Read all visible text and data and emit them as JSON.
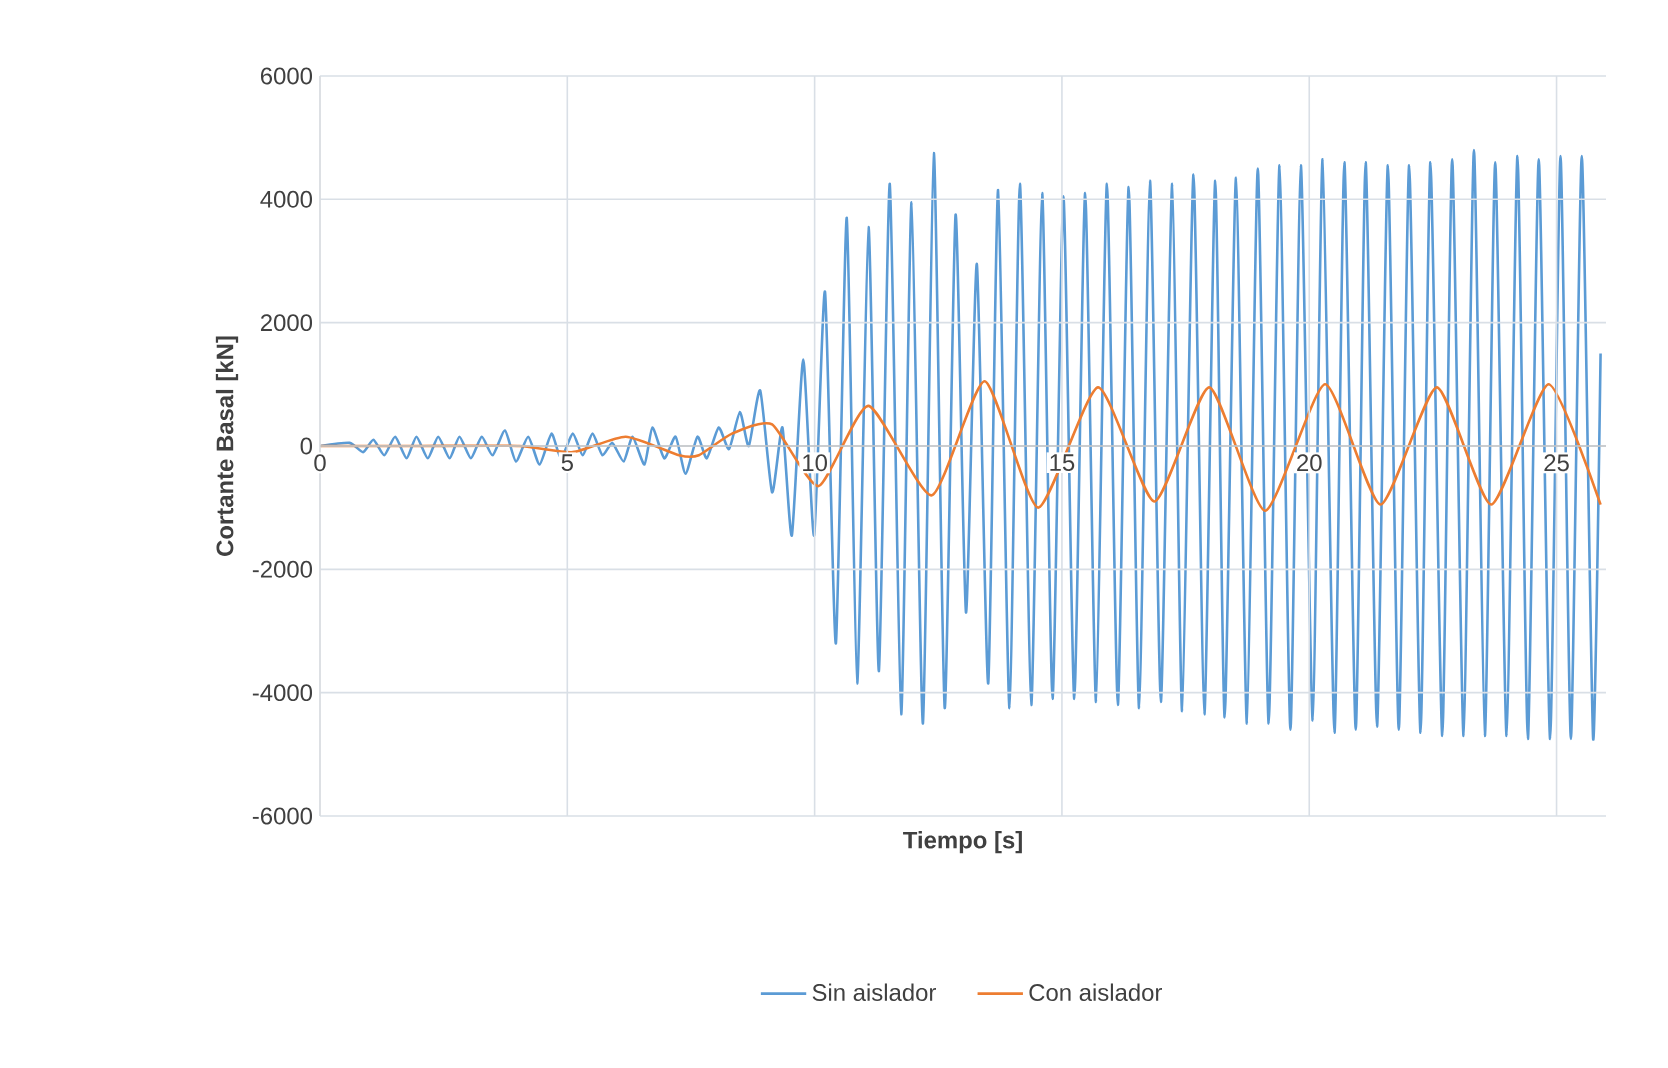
{
  "chart_data": {
    "type": "line",
    "xlabel": "Tiempo [s]",
    "ylabel": "Cortante Basal [kN]",
    "xlim": [
      0,
      26
    ],
    "xticks": [
      0,
      5,
      10,
      15,
      20,
      25
    ],
    "ylim": [
      -6000,
      6000
    ],
    "yticks": [
      -6000,
      -4000,
      -2000,
      0,
      2000,
      4000,
      6000
    ],
    "grid": true,
    "legend": "bottom",
    "series": [
      {
        "name": "Sin aislador",
        "color": "#5b9bd5",
        "x": [
          0,
          0.6,
          0.87,
          1.08,
          1.3,
          1.52,
          1.75,
          1.95,
          2.18,
          2.39,
          2.62,
          2.82,
          3.05,
          3.27,
          3.49,
          3.74,
          3.96,
          4.21,
          4.44,
          4.68,
          4.87,
          5.11,
          5.31,
          5.51,
          5.71,
          5.91,
          6.14,
          6.32,
          6.56,
          6.72,
          6.96,
          7.19,
          7.39,
          7.63,
          7.82,
          8.06,
          8.27,
          8.49,
          8.67,
          8.9,
          9.14,
          9.35,
          9.54,
          9.77,
          9.99,
          10.21,
          10.43,
          10.65,
          10.86,
          11.09,
          11.3,
          11.52,
          11.75,
          11.96,
          12.19,
          12.41,
          12.63,
          12.85,
          13.06,
          13.28,
          13.51,
          13.71,
          13.94,
          14.15,
          14.38,
          14.6,
          14.81,
          15.03,
          15.25,
          15.47,
          15.69,
          15.91,
          16.13,
          16.35,
          16.56,
          16.78,
          17.0,
          17.23,
          17.43,
          17.66,
          17.88,
          18.1,
          18.29,
          18.52,
          18.74,
          18.96,
          19.18,
          19.4,
          19.62,
          19.83,
          20.07,
          20.27,
          20.51,
          20.71,
          20.94,
          21.14,
          21.37,
          21.59,
          21.81,
          22.02,
          22.25,
          22.45,
          22.69,
          22.89,
          23.12,
          23.33,
          23.55,
          23.76,
          23.99,
          24.21,
          24.42,
          24.64,
          24.87,
          25.08,
          25.29,
          25.51,
          25.74,
          25.89
        ],
        "values": [
          0,
          50,
          -100,
          100,
          -150,
          150,
          -200,
          150,
          -200,
          150,
          -200,
          150,
          -200,
          150,
          -150,
          250,
          -250,
          150,
          -300,
          200,
          -200,
          200,
          -150,
          200,
          -150,
          50,
          -250,
          150,
          -300,
          300,
          -200,
          150,
          -450,
          150,
          -200,
          300,
          -50,
          550,
          0,
          900,
          -750,
          300,
          -1450,
          1400,
          -1450,
          2500,
          -3200,
          3700,
          -3850,
          3550,
          -3650,
          4250,
          -4350,
          3950,
          -4500,
          4750,
          -4250,
          3750,
          -2700,
          2950,
          -3850,
          4150,
          -4250,
          4250,
          -4200,
          4100,
          -4100,
          4050,
          -4100,
          4100,
          -4150,
          4250,
          -4200,
          4200,
          -4250,
          4300,
          -4150,
          4250,
          -4300,
          4400,
          -4350,
          4300,
          -4400,
          4350,
          -4500,
          4500,
          -4500,
          4550,
          -4600,
          4550,
          -4450,
          4650,
          -4650,
          4600,
          -4600,
          4600,
          -4550,
          4550,
          -4600,
          4550,
          -4650,
          4600,
          -4700,
          4650,
          -4700,
          4800,
          -4700,
          4600,
          -4700,
          4700,
          -4750,
          4650,
          -4750,
          4700,
          -4750,
          4700,
          -4750,
          1500
        ]
      },
      {
        "name": "Con aislador",
        "color": "#ed7d31",
        "x": [
          0,
          2,
          4.03,
          5.11,
          6.18,
          7.26,
          7.66,
          8.33,
          9.14,
          10.08,
          11.09,
          12.37,
          13.44,
          14.52,
          15.73,
          16.87,
          17.98,
          19.11,
          20.32,
          21.44,
          22.58,
          23.68,
          24.84,
          25.89
        ],
        "values": [
          0,
          0,
          0,
          -100,
          150,
          -150,
          -150,
          200,
          350,
          -650,
          650,
          -800,
          1050,
          -1000,
          950,
          -900,
          950,
          -1050,
          1000,
          -950,
          950,
          -950,
          1000,
          -950
        ]
      }
    ]
  }
}
